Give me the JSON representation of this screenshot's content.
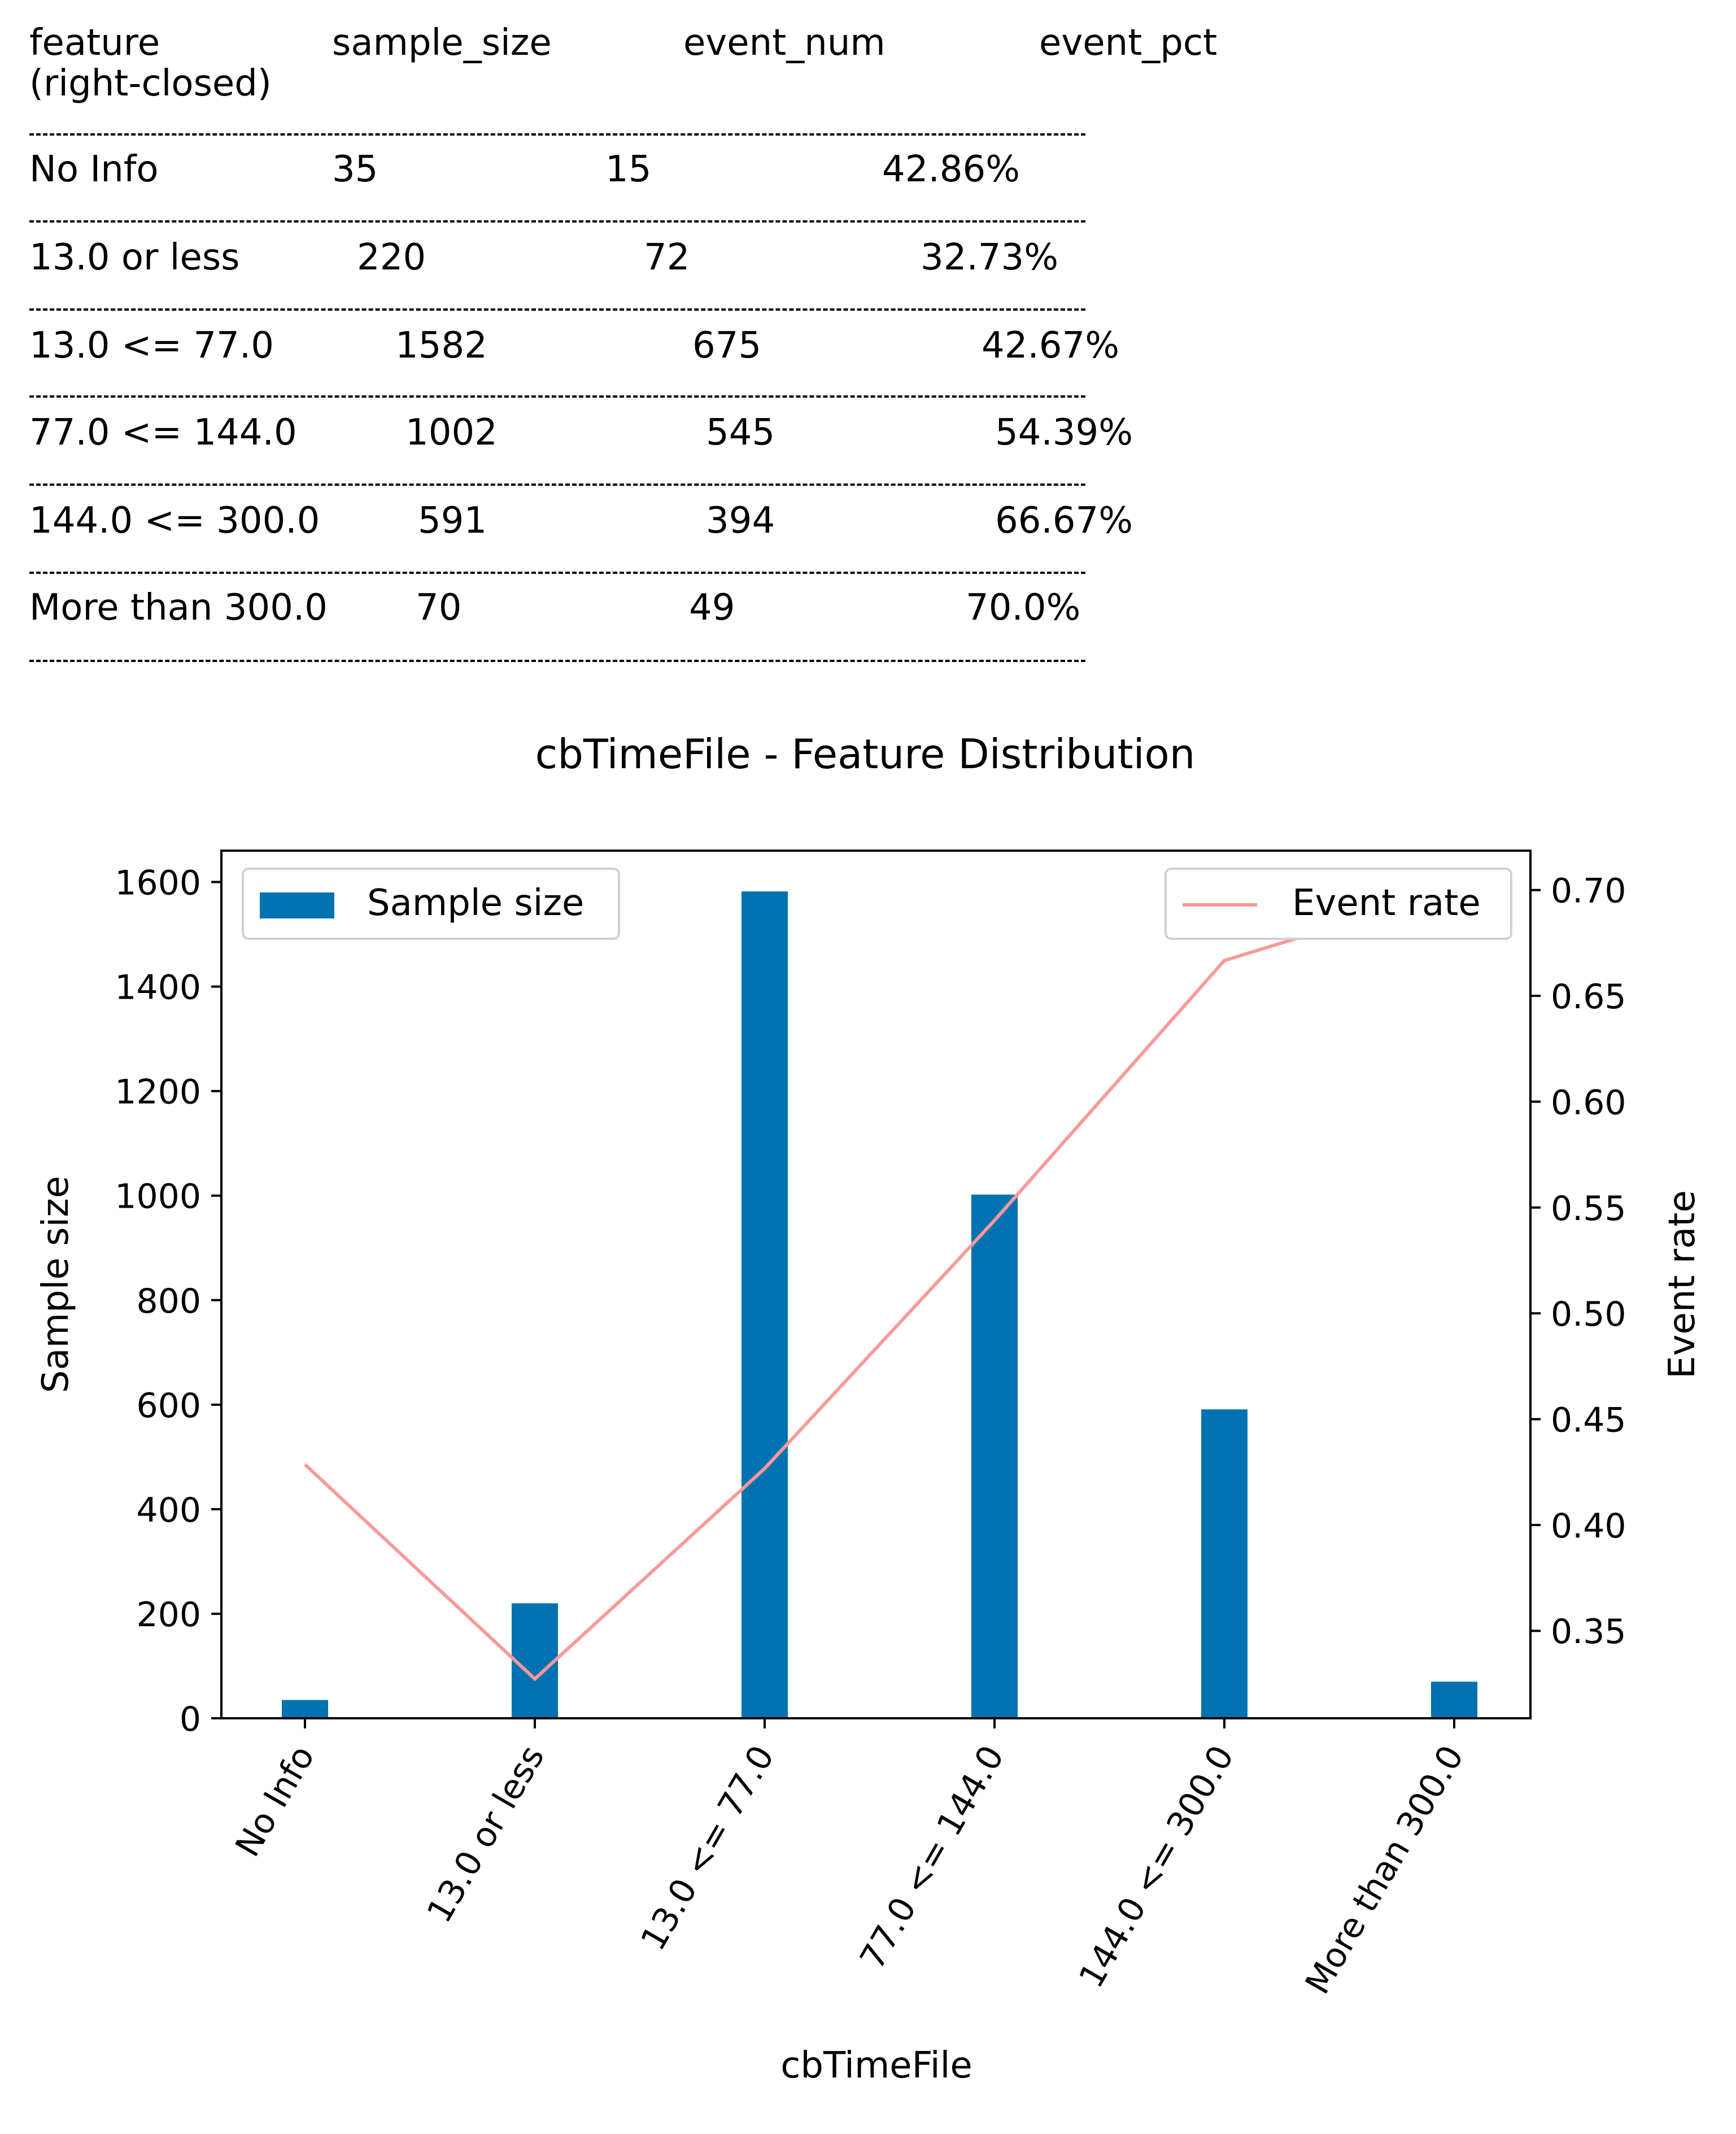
{
  "table": {
    "headers": [
      "feature\n(right-closed)",
      "sample_size",
      "event_num",
      "event_pct"
    ],
    "rows": [
      [
        "No Info",
        "35",
        "15",
        "42.86%"
      ],
      [
        "13.0 or less",
        "220",
        "72",
        "32.73%"
      ],
      [
        "13.0 <= 77.0",
        "1582",
        "675",
        "42.67%"
      ],
      [
        "77.0 <= 144.0",
        "1002",
        "545",
        "54.39%"
      ],
      [
        "144.0 <= 300.0",
        "591",
        "394",
        "66.67%"
      ],
      [
        "More than 300.0",
        "70",
        "49",
        "70.0%"
      ]
    ]
  },
  "chart_data": {
    "type": "bar",
    "title": "cbTimeFile - Feature Distribution",
    "xlabel": "cbTimeFile",
    "ylabel": "Sample size",
    "y2label": "Event rate",
    "categories": [
      "No Info",
      "13.0 or less",
      "13.0 <= 77.0",
      "77.0 <= 144.0",
      "144.0 <= 300.0",
      "More than 300.0"
    ],
    "series": [
      {
        "name": "Sample size",
        "type": "bar",
        "axis": "left",
        "color": "#0072b2",
        "values": [
          35,
          220,
          1582,
          1002,
          591,
          70
        ]
      },
      {
        "name": "Event rate",
        "type": "line",
        "axis": "right",
        "color": "#f89a9a",
        "values": [
          0.4286,
          0.3273,
          0.4267,
          0.5439,
          0.6667,
          0.7
        ]
      }
    ],
    "ylim": [
      0,
      1660
    ],
    "y_ticks": [
      0,
      200,
      400,
      600,
      800,
      1000,
      1200,
      1400,
      1600
    ],
    "y2lim": [
      0.3087,
      0.7186
    ],
    "y2_ticks": [
      "0.35",
      "0.40",
      "0.45",
      "0.50",
      "0.55",
      "0.60",
      "0.65",
      "0.70"
    ],
    "legend_left": "upper-left",
    "legend_right": "upper-right",
    "grid": false
  }
}
